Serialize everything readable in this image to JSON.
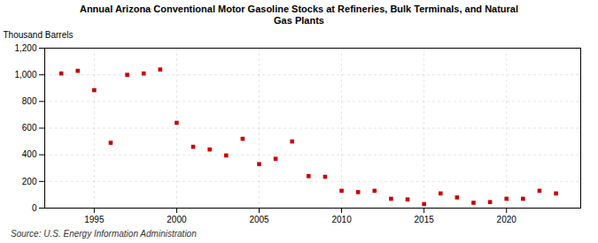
{
  "chart_data": {
    "type": "scatter",
    "title": "Annual Arizona Conventional Motor Gasoline Stocks at Refineries, Bulk Terminals, and Natural\nGas Plants",
    "ylabel": "Thousand Barrels",
    "source": "Source: U.S. Energy Information Administration",
    "x": [
      1993,
      1994,
      1995,
      1996,
      1997,
      1998,
      1999,
      2000,
      2001,
      2002,
      2003,
      2004,
      2005,
      2006,
      2007,
      2008,
      2009,
      2010,
      2011,
      2012,
      2013,
      2014,
      2015,
      2016,
      2017,
      2018,
      2019,
      2020,
      2021,
      2022,
      2023
    ],
    "values": [
      1010,
      1030,
      885,
      490,
      1000,
      1010,
      1040,
      640,
      460,
      440,
      395,
      520,
      330,
      370,
      500,
      240,
      235,
      130,
      120,
      130,
      70,
      65,
      30,
      110,
      80,
      40,
      45,
      70,
      70,
      130,
      110
    ],
    "color": "#cc0000",
    "marker": "square",
    "xlim": [
      1992,
      2024.5
    ],
    "xticks": [
      1995,
      2000,
      2005,
      2010,
      2015,
      2020
    ],
    "ylim": [
      0,
      1200
    ],
    "yticks": [
      0,
      200,
      400,
      600,
      800,
      {
        "value": 1000,
        "label": "1,000"
      },
      {
        "value": 1200,
        "label": "1,200"
      }
    ],
    "grid": true
  }
}
